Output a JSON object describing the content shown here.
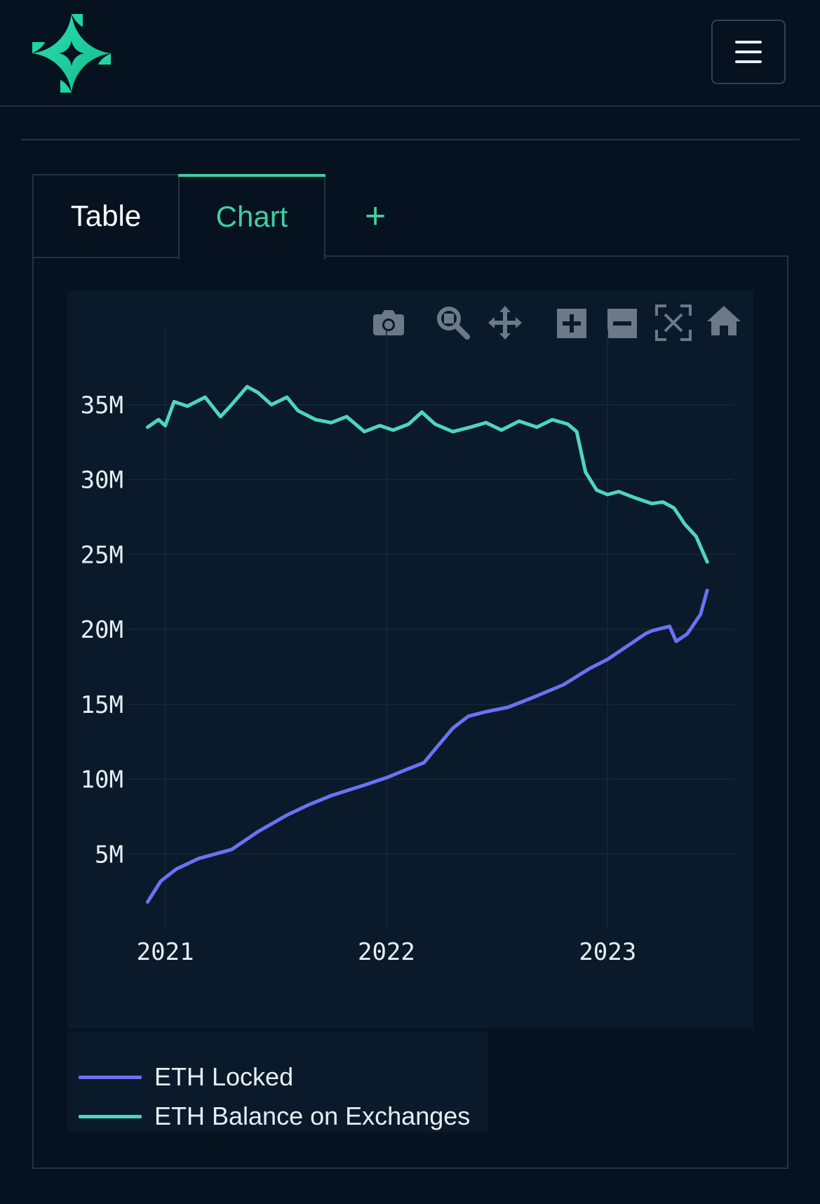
{
  "header": {
    "logo_icon": "sparkle-logo-icon",
    "menu_icon": "hamburger-menu-icon"
  },
  "tabs": [
    {
      "label": "Table",
      "active": false
    },
    {
      "label": "Chart",
      "active": true
    },
    {
      "label": "+",
      "active": false
    }
  ],
  "toolbar": [
    "camera-icon",
    "zoom-icon",
    "pan-icon",
    "zoom-in-icon",
    "zoom-out-icon",
    "autoscale-icon",
    "reset-home-icon"
  ],
  "colors": {
    "accent": "#3ecfa2",
    "eth_locked": "#6a72f5",
    "eth_exchanges": "#4fd4c4",
    "background": "#06121f",
    "plot_background": "#0a1a2b"
  },
  "chart_data": {
    "type": "line",
    "title": "",
    "xlabel": "",
    "ylabel": "",
    "xlim": [
      2020.83,
      2023.57
    ],
    "ylim": [
      0,
      40000000
    ],
    "x_ticks": [
      2021,
      2022,
      2023
    ],
    "x_tick_labels": [
      "2021",
      "2022",
      "2023"
    ],
    "y_ticks": [
      5000000,
      10000000,
      15000000,
      20000000,
      25000000,
      30000000,
      35000000
    ],
    "y_tick_labels": [
      "5M",
      "10M",
      "15M",
      "20M",
      "25M",
      "30M",
      "35M"
    ],
    "legend_position": "bottom-left",
    "series": [
      {
        "name": "ETH Locked",
        "color": "#6a72f5",
        "x": [
          2020.92,
          2020.98,
          2021.05,
          2021.15,
          2021.3,
          2021.42,
          2021.55,
          2021.65,
          2021.75,
          2021.9,
          2022.0,
          2022.1,
          2022.17,
          2022.22,
          2022.3,
          2022.37,
          2022.45,
          2022.55,
          2022.67,
          2022.8,
          2022.92,
          2023.0,
          2023.1,
          2023.17,
          2023.2,
          2023.28,
          2023.31,
          2023.36,
          2023.42,
          2023.45
        ],
        "values": [
          1800000,
          3200000,
          4000000,
          4700000,
          5300000,
          6500000,
          7600000,
          8300000,
          8900000,
          9600000,
          10100000,
          10700000,
          11100000,
          12000000,
          13400000,
          14200000,
          14500000,
          14800000,
          15500000,
          16300000,
          17400000,
          18000000,
          19000000,
          19700000,
          19900000,
          20200000,
          19200000,
          19700000,
          21000000,
          22600000
        ]
      },
      {
        "name": "ETH Balance on Exchanges",
        "color": "#4fd4c4",
        "x": [
          2020.92,
          2020.97,
          2021.0,
          2021.04,
          2021.1,
          2021.18,
          2021.25,
          2021.3,
          2021.37,
          2021.42,
          2021.48,
          2021.55,
          2021.6,
          2021.68,
          2021.75,
          2021.82,
          2021.9,
          2021.97,
          2022.03,
          2022.1,
          2022.16,
          2022.22,
          2022.3,
          2022.38,
          2022.45,
          2022.52,
          2022.6,
          2022.68,
          2022.75,
          2022.82,
          2022.86,
          2022.9,
          2022.95,
          2023.0,
          2023.05,
          2023.12,
          2023.2,
          2023.25,
          2023.3,
          2023.35,
          2023.4,
          2023.45
        ],
        "values": [
          33500000,
          34000000,
          33600000,
          35200000,
          34900000,
          35500000,
          34200000,
          35000000,
          36200000,
          35800000,
          35000000,
          35500000,
          34600000,
          34000000,
          33800000,
          34200000,
          33200000,
          33600000,
          33300000,
          33700000,
          34500000,
          33700000,
          33200000,
          33500000,
          33800000,
          33300000,
          33900000,
          33500000,
          34000000,
          33700000,
          33200000,
          30500000,
          29300000,
          29000000,
          29200000,
          28800000,
          28400000,
          28500000,
          28100000,
          27000000,
          26200000,
          24500000
        ]
      }
    ]
  }
}
